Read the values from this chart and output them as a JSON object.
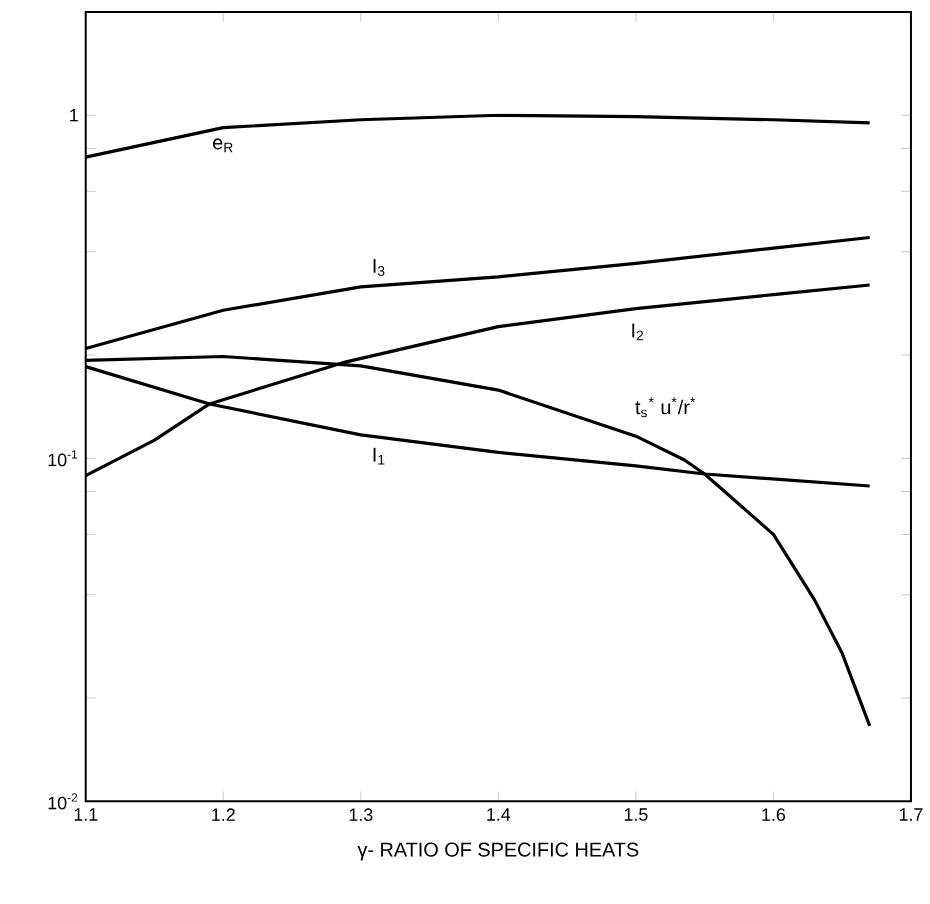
{
  "chart_data": {
    "type": "line",
    "xlabel": "γ- RATIO OF SPECIFIC HEATS",
    "log": "y",
    "grid": false,
    "legend": false,
    "marker": "none",
    "line_style": "solid",
    "xlim": [
      1.1,
      1.7
    ],
    "xticks": [
      1.1,
      1.2,
      1.3,
      1.4,
      1.5,
      1.6,
      1.7
    ],
    "ylim": [
      0.01,
      2
    ],
    "yticks": [
      {
        "value": 0.01,
        "label": "10$^{-2}$"
      },
      {
        "value": 0.02,
        "label": null
      },
      {
        "value": 0.04,
        "label": null
      },
      {
        "value": 0.06,
        "label": null
      },
      {
        "value": 0.08,
        "label": null
      },
      {
        "value": 0.1,
        "label": "10$^{-1}$"
      },
      {
        "value": 0.2,
        "label": null
      },
      {
        "value": 0.4,
        "label": null
      },
      {
        "value": 0.6,
        "label": null
      },
      {
        "value": 0.8,
        "label": null
      },
      {
        "value": 1,
        "label": "1"
      }
    ],
    "series": [
      {
        "name": "e$_{R}$",
        "color": "#000000",
        "x": [
          1.1,
          1.2,
          1.3,
          1.4,
          1.5,
          1.6,
          1.67
        ],
        "values": [
          0.755,
          0.92,
          0.97,
          1.0,
          0.99,
          0.97,
          0.95
        ]
      },
      {
        "name": "I$_{3}$",
        "color": "#000000",
        "x": [
          1.1,
          1.2,
          1.3,
          1.4,
          1.5,
          1.6,
          1.67
        ],
        "values": [
          0.209,
          0.27,
          0.316,
          0.338,
          0.37,
          0.41,
          0.44
        ]
      },
      {
        "name": "I$_{2}$",
        "color": "#000000",
        "x": [
          1.1,
          1.15,
          1.19,
          1.287,
          1.4,
          1.5,
          1.6,
          1.67
        ],
        "values": [
          0.089,
          0.113,
          0.144,
          0.19,
          0.242,
          0.273,
          0.3,
          0.32
        ]
      },
      {
        "name": "I$_{1}$",
        "color": "#000000",
        "x": [
          1.1,
          1.19,
          1.3,
          1.4,
          1.5,
          1.55,
          1.67
        ],
        "values": [
          0.185,
          0.144,
          0.117,
          0.104,
          0.095,
          0.09,
          0.083
        ]
      },
      {
        "name": "t$_{s}$$^{*}$ u$^{*}$/r$^{*}$",
        "color": "#000000",
        "x": [
          1.1,
          1.2,
          1.3,
          1.4,
          1.5,
          1.535,
          1.55,
          1.6,
          1.63,
          1.65,
          1.67
        ],
        "values": [
          0.193,
          0.198,
          0.186,
          0.158,
          0.116,
          0.099,
          0.09,
          0.06,
          0.0386,
          0.027,
          0.0166
        ]
      }
    ]
  }
}
